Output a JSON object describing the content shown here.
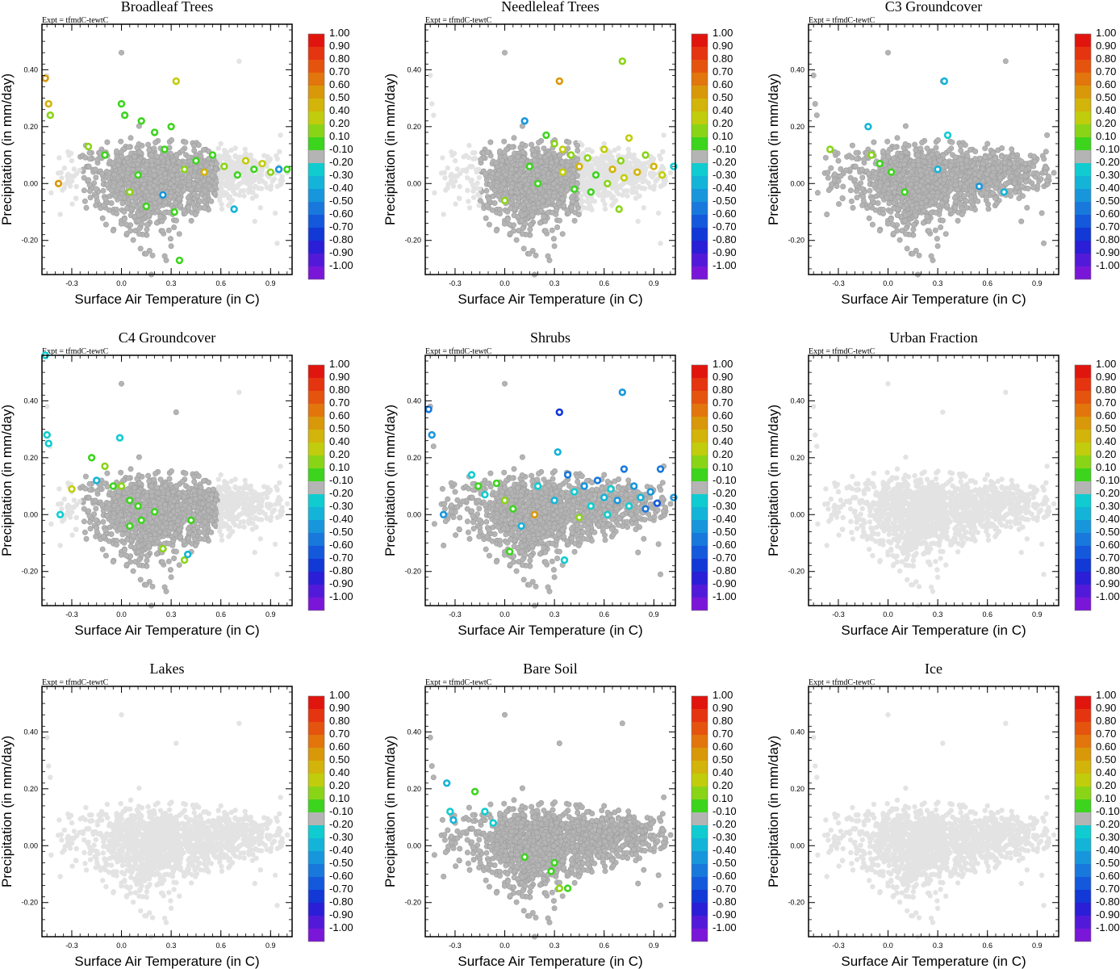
{
  "chart_data": {
    "type": "scatter",
    "experiment_label": "Expt = tfmdC-tewtC",
    "xlabel": "Surface Air Temperature (in C)",
    "ylabel": "Precipitation (in mm/day)",
    "xlim": [
      -0.48,
      1.03
    ],
    "ylim": [
      -0.32,
      0.56
    ],
    "x_ticks": [
      -0.3,
      0.0,
      0.3,
      0.6,
      0.9
    ],
    "x_tick_labels": [
      "-0.3",
      "0.0",
      "0.3",
      "0.6",
      "0.9"
    ],
    "y_ticks": [
      -0.2,
      0.0,
      0.2,
      0.4
    ],
    "y_tick_labels": [
      "-0.20",
      "0.00",
      "0.20",
      "0.40"
    ],
    "colorbar": {
      "labels": [
        "1.00",
        "0.90",
        "0.80",
        "0.70",
        "0.60",
        "0.50",
        "0.40",
        "0.20",
        "0.10",
        "-0.10",
        "-0.20",
        "-0.30",
        "-0.40",
        "-0.50",
        "-0.60",
        "-0.70",
        "-0.80",
        "-0.90",
        "-1.00"
      ],
      "colors": [
        "#e0150e",
        "#e53410",
        "#e4540e",
        "#e2750c",
        "#d9980a",
        "#d2b40a",
        "#c1cd0c",
        "#8ad418",
        "#3dd41e",
        "#b4b4b4",
        "#10ccd0",
        "#14b4d8",
        "#1896dc",
        "#1878dc",
        "#1458dc",
        "#1238d6",
        "#2a1ed6",
        "#521ad8",
        "#7a16d8"
      ]
    },
    "colors": {
      "background_points": "#e3e3e3",
      "neutral_points": "#b4b4b4"
    },
    "panels": [
      {
        "title": "Broadleaf Trees",
        "coverage": "cluster-west",
        "highlight": "green-yellow"
      },
      {
        "title": "Needleleaf Trees",
        "coverage": "warm-east",
        "highlight": "green-yellow"
      },
      {
        "title": "C3 Groundcover",
        "coverage": "full",
        "highlight": "sparse-green"
      },
      {
        "title": "C4 Groundcover",
        "coverage": "cluster-west",
        "highlight": "sparse-green"
      },
      {
        "title": "Shrubs",
        "coverage": "full",
        "highlight": "blue-east"
      },
      {
        "title": "Urban Fraction",
        "coverage": "none",
        "highlight": "none"
      },
      {
        "title": "Lakes",
        "coverage": "none",
        "highlight": "none"
      },
      {
        "title": "Bare Soil",
        "coverage": "full",
        "highlight": "sparse-cyan"
      },
      {
        "title": "Ice",
        "coverage": "none",
        "highlight": "none"
      }
    ],
    "cloud_points": [
      [
        0.95,
        0.06
      ],
      [
        0.82,
        0.05
      ],
      [
        0.55,
        0.03
      ],
      [
        0.4,
        0.02
      ],
      [
        0.25,
        0.0
      ],
      [
        0.1,
        0.05
      ],
      [
        -0.05,
        0.07
      ],
      [
        0.12,
        -0.05
      ],
      [
        0.2,
        -0.1
      ],
      [
        0.3,
        -0.05
      ],
      [
        0.18,
        0.12
      ],
      [
        -0.12,
        0.12
      ],
      [
        0.65,
        0.02
      ],
      [
        0.7,
        0.07
      ],
      [
        0.78,
        0.1
      ],
      [
        0.88,
        0.03
      ],
      [
        0.5,
        -0.02
      ],
      [
        0.05,
        0.02
      ],
      [
        0.35,
        0.06
      ],
      [
        0.22,
        0.15
      ],
      [
        -0.2,
        0.06
      ],
      [
        0.15,
        -0.18
      ],
      [
        0.3,
        -0.22
      ],
      [
        0.6,
        0.14
      ],
      [
        0.9,
        -0.02
      ],
      [
        0.45,
        0.1
      ],
      [
        -0.3,
        0.08
      ],
      [
        0.08,
        -0.12
      ],
      [
        0.28,
        0.1
      ],
      [
        0.5,
        0.08
      ],
      [
        0.0,
        0.46
      ],
      [
        0.33,
        0.36
      ],
      [
        0.71,
        0.43
      ],
      [
        -0.45,
        0.38
      ],
      [
        -0.44,
        0.28
      ],
      [
        -0.43,
        0.24
      ],
      [
        0.94,
        -0.21
      ],
      [
        0.27,
        -0.27
      ],
      [
        0.18,
        -0.32
      ],
      [
        0.96,
        0.17
      ]
    ],
    "markers": [
      {
        "panel": 0,
        "x": 0.33,
        "y": 0.36,
        "color": "#c1cd0c"
      },
      {
        "panel": 0,
        "x": -0.46,
        "y": 0.37,
        "color": "#d9980a"
      },
      {
        "panel": 0,
        "x": -0.44,
        "y": 0.28,
        "color": "#d2b40a"
      },
      {
        "panel": 0,
        "x": -0.43,
        "y": 0.24,
        "color": "#8ad418"
      },
      {
        "panel": 0,
        "x": -0.38,
        "y": 0.0,
        "color": "#d9980a"
      },
      {
        "panel": 0,
        "x": -0.2,
        "y": 0.13,
        "color": "#8ad418"
      },
      {
        "panel": 0,
        "x": -0.1,
        "y": 0.1,
        "color": "#3dd41e"
      },
      {
        "panel": 0,
        "x": 0.0,
        "y": 0.28,
        "color": "#3dd41e"
      },
      {
        "panel": 0,
        "x": 0.02,
        "y": 0.24,
        "color": "#3dd41e"
      },
      {
        "panel": 0,
        "x": 0.12,
        "y": 0.22,
        "color": "#3dd41e"
      },
      {
        "panel": 0,
        "x": 0.2,
        "y": 0.18,
        "color": "#3dd41e"
      },
      {
        "panel": 0,
        "x": 0.26,
        "y": 0.12,
        "color": "#3dd41e"
      },
      {
        "panel": 0,
        "x": 0.3,
        "y": 0.2,
        "color": "#3dd41e"
      },
      {
        "panel": 0,
        "x": 0.38,
        "y": 0.05,
        "color": "#8ad418"
      },
      {
        "panel": 0,
        "x": 0.45,
        "y": 0.08,
        "color": "#3dd41e"
      },
      {
        "panel": 0,
        "x": 0.5,
        "y": 0.04,
        "color": "#d2b40a"
      },
      {
        "panel": 0,
        "x": 0.55,
        "y": 0.1,
        "color": "#3dd41e"
      },
      {
        "panel": 0,
        "x": 0.62,
        "y": 0.06,
        "color": "#8ad418"
      },
      {
        "panel": 0,
        "x": 0.7,
        "y": 0.03,
        "color": "#3dd41e"
      },
      {
        "panel": 0,
        "x": 0.75,
        "y": 0.08,
        "color": "#c1cd0c"
      },
      {
        "panel": 0,
        "x": 0.8,
        "y": 0.05,
        "color": "#3dd41e"
      },
      {
        "panel": 0,
        "x": 0.85,
        "y": 0.07,
        "color": "#c1cd0c"
      },
      {
        "panel": 0,
        "x": 0.9,
        "y": 0.04,
        "color": "#8ad418"
      },
      {
        "panel": 0,
        "x": 0.95,
        "y": 0.05,
        "color": "#1896dc"
      },
      {
        "panel": 0,
        "x": 1.0,
        "y": 0.05,
        "color": "#3dd41e"
      },
      {
        "panel": 0,
        "x": 0.68,
        "y": -0.09,
        "color": "#14b4d8"
      },
      {
        "panel": 0,
        "x": 0.35,
        "y": -0.27,
        "color": "#3dd41e"
      },
      {
        "panel": 0,
        "x": 0.15,
        "y": -0.08,
        "color": "#3dd41e"
      },
      {
        "panel": 0,
        "x": 0.25,
        "y": -0.04,
        "color": "#1896dc"
      },
      {
        "panel": 0,
        "x": 0.1,
        "y": 0.03,
        "color": "#3dd41e"
      },
      {
        "panel": 0,
        "x": 0.05,
        "y": -0.03,
        "color": "#8ad418"
      },
      {
        "panel": 0,
        "x": 0.32,
        "y": -0.1,
        "color": "#3dd41e"
      },
      {
        "panel": 1,
        "x": 0.33,
        "y": 0.36,
        "color": "#d9980a"
      },
      {
        "panel": 1,
        "x": 0.71,
        "y": 0.43,
        "color": "#8ad418"
      },
      {
        "panel": 1,
        "x": 0.12,
        "y": 0.22,
        "color": "#1896dc"
      },
      {
        "panel": 1,
        "x": 0.25,
        "y": 0.17,
        "color": "#3dd41e"
      },
      {
        "panel": 1,
        "x": 0.3,
        "y": 0.14,
        "color": "#8ad418"
      },
      {
        "panel": 1,
        "x": 0.35,
        "y": 0.12,
        "color": "#c1cd0c"
      },
      {
        "panel": 1,
        "x": 0.4,
        "y": 0.1,
        "color": "#8ad418"
      },
      {
        "panel": 1,
        "x": 0.45,
        "y": 0.06,
        "color": "#d2b40a"
      },
      {
        "panel": 1,
        "x": 0.5,
        "y": 0.09,
        "color": "#8ad418"
      },
      {
        "panel": 1,
        "x": 0.55,
        "y": 0.03,
        "color": "#3dd41e"
      },
      {
        "panel": 1,
        "x": 0.6,
        "y": 0.12,
        "color": "#c1cd0c"
      },
      {
        "panel": 1,
        "x": 0.65,
        "y": 0.05,
        "color": "#d2b40a"
      },
      {
        "panel": 1,
        "x": 0.7,
        "y": 0.08,
        "color": "#8ad418"
      },
      {
        "panel": 1,
        "x": 0.75,
        "y": 0.16,
        "color": "#c1cd0c"
      },
      {
        "panel": 1,
        "x": 0.8,
        "y": 0.04,
        "color": "#d2b40a"
      },
      {
        "panel": 1,
        "x": 0.85,
        "y": 0.1,
        "color": "#8ad418"
      },
      {
        "panel": 1,
        "x": 0.9,
        "y": 0.06,
        "color": "#d2b40a"
      },
      {
        "panel": 1,
        "x": 0.95,
        "y": 0.03,
        "color": "#c1cd0c"
      },
      {
        "panel": 1,
        "x": 1.02,
        "y": 0.06,
        "color": "#10ccd0"
      },
      {
        "panel": 1,
        "x": 0.42,
        "y": -0.02,
        "color": "#3dd41e"
      },
      {
        "panel": 1,
        "x": 0.52,
        "y": -0.03,
        "color": "#3dd41e"
      },
      {
        "panel": 1,
        "x": 0.62,
        "y": 0.0,
        "color": "#8ad418"
      },
      {
        "panel": 1,
        "x": 0.72,
        "y": 0.02,
        "color": "#c1cd0c"
      },
      {
        "panel": 1,
        "x": 0.2,
        "y": 0.0,
        "color": "#3dd41e"
      },
      {
        "panel": 1,
        "x": 0.15,
        "y": 0.06,
        "color": "#3dd41e"
      },
      {
        "panel": 1,
        "x": 0.69,
        "y": -0.09,
        "color": "#8ad418"
      },
      {
        "panel": 1,
        "x": 0.0,
        "y": -0.06,
        "color": "#8ad418"
      },
      {
        "panel": 1,
        "x": 0.35,
        "y": 0.04,
        "color": "#c1cd0c"
      },
      {
        "panel": 2,
        "x": 0.34,
        "y": 0.36,
        "color": "#14b4d8"
      },
      {
        "panel": 2,
        "x": -0.35,
        "y": 0.12,
        "color": "#8ad418"
      },
      {
        "panel": 2,
        "x": -0.12,
        "y": 0.2,
        "color": "#14b4d8"
      },
      {
        "panel": 2,
        "x": -0.1,
        "y": 0.1,
        "color": "#8ad418"
      },
      {
        "panel": 2,
        "x": -0.05,
        "y": 0.07,
        "color": "#3dd41e"
      },
      {
        "panel": 2,
        "x": 0.02,
        "y": 0.04,
        "color": "#3dd41e"
      },
      {
        "panel": 2,
        "x": 0.1,
        "y": -0.03,
        "color": "#3dd41e"
      },
      {
        "panel": 2,
        "x": 0.3,
        "y": 0.05,
        "color": "#14b4d8"
      },
      {
        "panel": 2,
        "x": 0.55,
        "y": -0.01,
        "color": "#1896dc"
      },
      {
        "panel": 2,
        "x": 0.7,
        "y": -0.03,
        "color": "#14b4d8"
      },
      {
        "panel": 2,
        "x": 0.36,
        "y": 0.17,
        "color": "#10ccd0"
      },
      {
        "panel": 3,
        "x": -0.45,
        "y": 0.28,
        "color": "#10ccd0"
      },
      {
        "panel": 3,
        "x": -0.44,
        "y": 0.25,
        "color": "#10ccd0"
      },
      {
        "panel": 3,
        "x": -0.37,
        "y": 0.0,
        "color": "#10ccd0"
      },
      {
        "panel": 3,
        "x": -0.3,
        "y": 0.09,
        "color": "#c1cd0c"
      },
      {
        "panel": 3,
        "x": -0.18,
        "y": 0.2,
        "color": "#3dd41e"
      },
      {
        "panel": 3,
        "x": -0.1,
        "y": 0.17,
        "color": "#8ad418"
      },
      {
        "panel": 3,
        "x": -0.15,
        "y": 0.12,
        "color": "#14b4d8"
      },
      {
        "panel": 3,
        "x": -0.05,
        "y": 0.1,
        "color": "#3dd41e"
      },
      {
        "panel": 3,
        "x": -0.01,
        "y": 0.27,
        "color": "#10ccd0"
      },
      {
        "panel": 3,
        "x": 0.0,
        "y": 0.1,
        "color": "#8ad418"
      },
      {
        "panel": 3,
        "x": 0.05,
        "y": 0.05,
        "color": "#3dd41e"
      },
      {
        "panel": 3,
        "x": 0.1,
        "y": 0.03,
        "color": "#3dd41e"
      },
      {
        "panel": 3,
        "x": 0.12,
        "y": -0.02,
        "color": "#3dd41e"
      },
      {
        "panel": 3,
        "x": 0.2,
        "y": 0.01,
        "color": "#3dd41e"
      },
      {
        "panel": 3,
        "x": 0.25,
        "y": -0.12,
        "color": "#8ad418"
      },
      {
        "panel": 3,
        "x": 0.38,
        "y": -0.16,
        "color": "#8ad418"
      },
      {
        "panel": 3,
        "x": 0.4,
        "y": -0.14,
        "color": "#14b4d8"
      },
      {
        "panel": 3,
        "x": 0.42,
        "y": -0.02,
        "color": "#3dd41e"
      },
      {
        "panel": 3,
        "x": -0.46,
        "y": 0.56,
        "color": "#10ccd0"
      },
      {
        "panel": 3,
        "x": 0.05,
        "y": -0.04,
        "color": "#3dd41e"
      },
      {
        "panel": 4,
        "x": -0.46,
        "y": 0.37,
        "color": "#1878dc"
      },
      {
        "panel": 4,
        "x": -0.44,
        "y": 0.28,
        "color": "#1896dc"
      },
      {
        "panel": 4,
        "x": -0.37,
        "y": 0.0,
        "color": "#1896dc"
      },
      {
        "panel": 4,
        "x": 0.33,
        "y": 0.36,
        "color": "#1238d6"
      },
      {
        "panel": 4,
        "x": 0.71,
        "y": 0.43,
        "color": "#1896dc"
      },
      {
        "panel": 4,
        "x": 0.32,
        "y": 0.22,
        "color": "#14b4d8"
      },
      {
        "panel": 4,
        "x": -0.2,
        "y": 0.14,
        "color": "#10ccd0"
      },
      {
        "panel": 4,
        "x": -0.16,
        "y": 0.1,
        "color": "#3dd41e"
      },
      {
        "panel": 4,
        "x": -0.12,
        "y": 0.07,
        "color": "#10ccd0"
      },
      {
        "panel": 4,
        "x": -0.05,
        "y": 0.11,
        "color": "#3dd41e"
      },
      {
        "panel": 4,
        "x": 0.0,
        "y": 0.05,
        "color": "#8ad418"
      },
      {
        "panel": 4,
        "x": 0.05,
        "y": 0.02,
        "color": "#3dd41e"
      },
      {
        "panel": 4,
        "x": 0.1,
        "y": -0.04,
        "color": "#14b4d8"
      },
      {
        "panel": 4,
        "x": 0.18,
        "y": 0.0,
        "color": "#d9980a"
      },
      {
        "panel": 4,
        "x": 0.2,
        "y": 0.1,
        "color": "#10ccd0"
      },
      {
        "panel": 4,
        "x": 0.3,
        "y": 0.05,
        "color": "#14b4d8"
      },
      {
        "panel": 4,
        "x": 0.38,
        "y": 0.14,
        "color": "#1878dc"
      },
      {
        "panel": 4,
        "x": 0.42,
        "y": 0.08,
        "color": "#10ccd0"
      },
      {
        "panel": 4,
        "x": 0.48,
        "y": 0.1,
        "color": "#1896dc"
      },
      {
        "panel": 4,
        "x": 0.52,
        "y": 0.03,
        "color": "#10ccd0"
      },
      {
        "panel": 4,
        "x": 0.56,
        "y": 0.12,
        "color": "#1878dc"
      },
      {
        "panel": 4,
        "x": 0.6,
        "y": 0.06,
        "color": "#14b4d8"
      },
      {
        "panel": 4,
        "x": 0.64,
        "y": 0.09,
        "color": "#10ccd0"
      },
      {
        "panel": 4,
        "x": 0.68,
        "y": 0.05,
        "color": "#1896dc"
      },
      {
        "panel": 4,
        "x": 0.72,
        "y": 0.16,
        "color": "#1878dc"
      },
      {
        "panel": 4,
        "x": 0.75,
        "y": 0.03,
        "color": "#10ccd0"
      },
      {
        "panel": 4,
        "x": 0.78,
        "y": 0.1,
        "color": "#1896dc"
      },
      {
        "panel": 4,
        "x": 0.82,
        "y": 0.06,
        "color": "#14b4d8"
      },
      {
        "panel": 4,
        "x": 0.85,
        "y": 0.02,
        "color": "#1878dc"
      },
      {
        "panel": 4,
        "x": 0.88,
        "y": 0.08,
        "color": "#1896dc"
      },
      {
        "panel": 4,
        "x": 0.92,
        "y": 0.04,
        "color": "#1458dc"
      },
      {
        "panel": 4,
        "x": 0.94,
        "y": 0.16,
        "color": "#1878dc"
      },
      {
        "panel": 4,
        "x": 1.02,
        "y": 0.06,
        "color": "#1896dc"
      },
      {
        "panel": 4,
        "x": 0.36,
        "y": -0.16,
        "color": "#10ccd0"
      },
      {
        "panel": 4,
        "x": 0.03,
        "y": -0.13,
        "color": "#3dd41e"
      },
      {
        "panel": 4,
        "x": 0.45,
        "y": -0.01,
        "color": "#8ad418"
      },
      {
        "panel": 4,
        "x": 0.62,
        "y": 0.0,
        "color": "#10ccd0"
      },
      {
        "panel": 7,
        "x": -0.35,
        "y": 0.22,
        "color": "#14b4d8"
      },
      {
        "panel": 7,
        "x": -0.33,
        "y": 0.12,
        "color": "#10ccd0"
      },
      {
        "panel": 7,
        "x": -0.31,
        "y": 0.09,
        "color": "#14b4d8"
      },
      {
        "panel": 7,
        "x": -0.18,
        "y": 0.19,
        "color": "#3dd41e"
      },
      {
        "panel": 7,
        "x": -0.12,
        "y": 0.12,
        "color": "#10ccd0"
      },
      {
        "panel": 7,
        "x": -0.07,
        "y": 0.08,
        "color": "#10ccd0"
      },
      {
        "panel": 7,
        "x": 0.12,
        "y": -0.04,
        "color": "#3dd41e"
      },
      {
        "panel": 7,
        "x": 0.28,
        "y": -0.09,
        "color": "#3dd41e"
      },
      {
        "panel": 7,
        "x": 0.3,
        "y": -0.06,
        "color": "#3dd41e"
      },
      {
        "panel": 7,
        "x": 0.33,
        "y": -0.15,
        "color": "#8ad418"
      },
      {
        "panel": 7,
        "x": 0.38,
        "y": -0.15,
        "color": "#3dd41e"
      }
    ]
  }
}
